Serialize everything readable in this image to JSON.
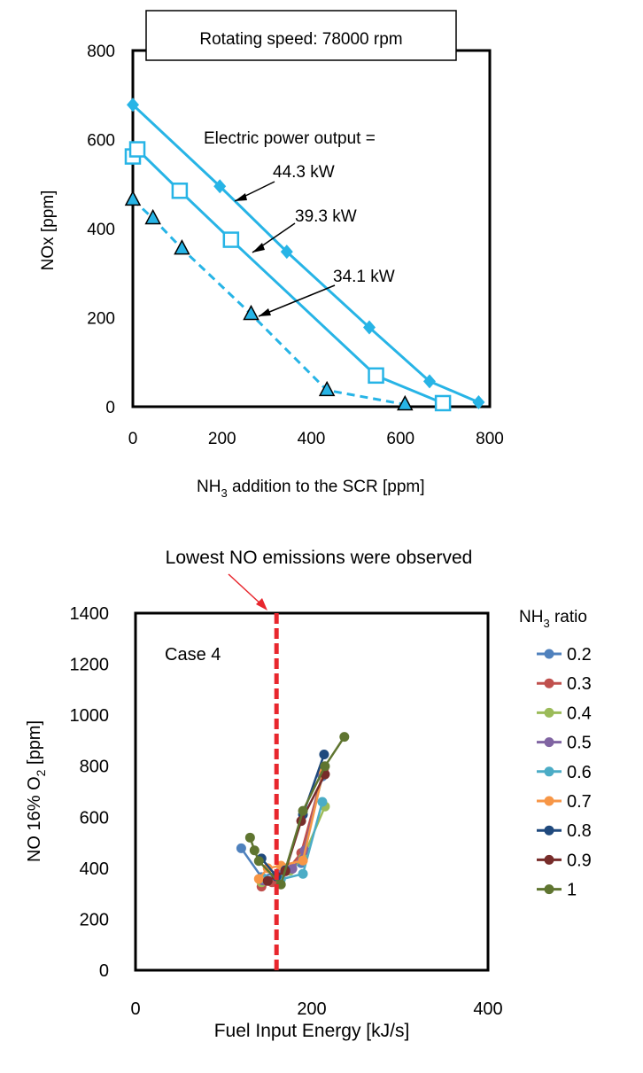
{
  "chart_data": [
    {
      "type": "line",
      "annotation_box": "Rotating speed:  78000 rpm",
      "annotation_header": "Electric power output =",
      "ylabel": "NOx  [ppm]",
      "xlabel_parts": [
        "NH",
        "3",
        " addition to the SCR   [ppm]"
      ],
      "xlim": [
        0,
        800
      ],
      "ylim": [
        0,
        800
      ],
      "xticks": [
        "0",
        "200",
        "400",
        "600",
        "800"
      ],
      "yticks": [
        "0",
        "200",
        "400",
        "600",
        "800"
      ],
      "color": "#27b4e6",
      "series": [
        {
          "name": "44.3 kW",
          "marker": "diamond",
          "dash": false,
          "points": [
            [
              0,
              678
            ],
            [
              195,
              495
            ],
            [
              345,
              348
            ],
            [
              530,
              178
            ],
            [
              665,
              57
            ],
            [
              775,
              10
            ]
          ]
        },
        {
          "name": "39.3 kW",
          "marker": "square-open",
          "dash": false,
          "points": [
            [
              0,
              562
            ],
            [
              10,
              578
            ],
            [
              105,
              485
            ],
            [
              220,
              375
            ],
            [
              545,
              70
            ],
            [
              695,
              8
            ]
          ]
        },
        {
          "name": "34.1 kW",
          "marker": "triangle",
          "dash": true,
          "points": [
            [
              0,
              465
            ],
            [
              45,
              423
            ],
            [
              110,
              355
            ],
            [
              265,
              208
            ],
            [
              435,
              37
            ],
            [
              610,
              5
            ]
          ]
        }
      ]
    },
    {
      "type": "line",
      "top_annotation": "Lowest NO emissions were observed",
      "inner_label": "Case 4",
      "ylabel_parts": [
        "NO 16% O",
        "2",
        "  [ppm]"
      ],
      "xlabel": "Fuel Input Energy   [kJ/s]",
      "legend_title_parts": [
        "NH",
        "3",
        " ratio"
      ],
      "xlim": [
        0,
        400
      ],
      "ylim": [
        0,
        1400
      ],
      "xticks": [
        "0",
        "200",
        "400"
      ],
      "yticks": [
        "0",
        "200",
        "400",
        "600",
        "800",
        "1000",
        "1200",
        "1400"
      ],
      "vline_x": 160,
      "vline_color": "#e8262d",
      "series": [
        {
          "name": "0.2",
          "color": "#4f81bd",
          "points": [
            [
              120,
              478
            ],
            [
              143,
              365
            ],
            [
              165,
              390
            ],
            [
              188,
              420
            ],
            [
              212,
              760
            ]
          ]
        },
        {
          "name": "0.3",
          "color": "#c0504d",
          "points": [
            [
              143,
              328
            ],
            [
              155,
              345
            ],
            [
              165,
              360
            ],
            [
              188,
              460
            ],
            [
              214,
              790
            ]
          ]
        },
        {
          "name": "0.4",
          "color": "#9bbb59",
          "points": [
            [
              143,
              345
            ],
            [
              160,
              372
            ],
            [
              175,
              390
            ],
            [
              190,
              440
            ],
            [
              215,
              642
            ]
          ]
        },
        {
          "name": "0.5",
          "color": "#8064a2",
          "points": [
            [
              145,
              352
            ],
            [
              162,
              380
            ],
            [
              178,
              398
            ],
            [
              192,
              470
            ],
            [
              212,
              770
            ]
          ]
        },
        {
          "name": "0.6",
          "color": "#4bacc6",
          "points": [
            [
              145,
              360
            ],
            [
              165,
              356
            ],
            [
              190,
              378
            ],
            [
              212,
              660
            ]
          ]
        },
        {
          "name": "0.7",
          "color": "#f79646",
          "points": [
            [
              140,
              358
            ],
            [
              150,
              400
            ],
            [
              165,
              410
            ],
            [
              190,
              430
            ],
            [
              213,
              780
            ]
          ]
        },
        {
          "name": "0.8",
          "color": "#1f497d",
          "points": [
            [
              143,
              438
            ],
            [
              160,
              368
            ],
            [
              170,
              392
            ],
            [
              190,
              610
            ],
            [
              214,
              846
            ]
          ]
        },
        {
          "name": "0.9",
          "color": "#772c2a",
          "points": [
            [
              150,
              350
            ],
            [
              170,
              388
            ],
            [
              188,
              585
            ],
            [
              215,
              768
            ]
          ]
        },
        {
          "name": "1",
          "color": "#5f7530",
          "points": [
            [
              130,
              520
            ],
            [
              135,
              470
            ],
            [
              140,
              428
            ],
            [
              165,
              336
            ],
            [
              190,
              625
            ],
            [
              215,
              800
            ],
            [
              237,
              915
            ]
          ]
        }
      ]
    }
  ]
}
